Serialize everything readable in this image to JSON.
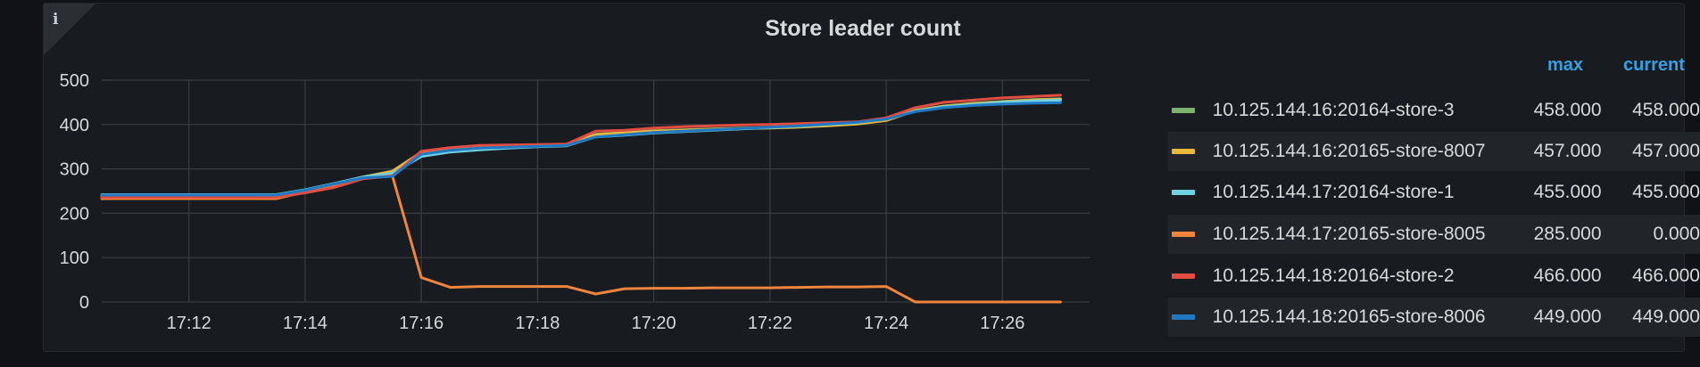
{
  "panel": {
    "title": "Store leader count",
    "info_icon": "info-icon"
  },
  "legend": {
    "headers": {
      "max": "max",
      "current": "current"
    },
    "items": [
      {
        "name": "10.125.144.16:20164-store-3",
        "max": "458.000",
        "current": "458.000",
        "color": "#7eb26d"
      },
      {
        "name": "10.125.144.16:20165-store-8007",
        "max": "457.000",
        "current": "457.000",
        "color": "#eab839"
      },
      {
        "name": "10.125.144.17:20164-store-1",
        "max": "455.000",
        "current": "455.000",
        "color": "#6ed0e0"
      },
      {
        "name": "10.125.144.17:20165-store-8005",
        "max": "285.000",
        "current": "0.000",
        "color": "#ef843c"
      },
      {
        "name": "10.125.144.18:20164-store-2",
        "max": "466.000",
        "current": "466.000",
        "color": "#e24d42"
      },
      {
        "name": "10.125.144.18:20165-store-8006",
        "max": "449.000",
        "current": "449.000",
        "color": "#1f78c1"
      }
    ]
  },
  "chart_data": {
    "type": "line",
    "title": "Store leader count",
    "xlabel": "",
    "ylabel": "",
    "x_ticks": [
      "17:12",
      "17:14",
      "17:16",
      "17:18",
      "17:20",
      "17:22",
      "17:24",
      "17:26"
    ],
    "y_ticks": [
      0,
      100,
      200,
      300,
      400,
      500
    ],
    "ylim": [
      0,
      500
    ],
    "xlim": [
      "17:10.5",
      "17:27.5"
    ],
    "grid": true,
    "legend_position": "right",
    "x": [
      "17:10.5",
      "17:11.0",
      "17:11.5",
      "17:12.0",
      "17:12.5",
      "17:13.0",
      "17:13.5",
      "17:14.0",
      "17:14.5",
      "17:15.0",
      "17:15.5",
      "17:16.0",
      "17:16.5",
      "17:17.0",
      "17:17.5",
      "17:18.0",
      "17:18.5",
      "17:19.0",
      "17:19.5",
      "17:20.0",
      "17:20.5",
      "17:21.0",
      "17:21.5",
      "17:22.0",
      "17:22.5",
      "17:23.0",
      "17:23.5",
      "17:24.0",
      "17:24.5",
      "17:25.0",
      "17:25.5",
      "17:26.0",
      "17:26.5",
      "17:27.0"
    ],
    "series": [
      {
        "name": "10.125.144.16:20164-store-3",
        "color": "#7eb26d",
        "values": [
          238,
          238,
          238,
          238,
          238,
          238,
          238,
          250,
          265,
          282,
          295,
          338,
          345,
          350,
          352,
          353,
          355,
          378,
          382,
          386,
          388,
          390,
          392,
          393,
          395,
          398,
          402,
          410,
          432,
          442,
          448,
          452,
          456,
          458
        ]
      },
      {
        "name": "10.125.144.16:20165-store-8007",
        "color": "#eab839",
        "values": [
          239,
          239,
          239,
          239,
          239,
          239,
          239,
          250,
          265,
          282,
          294,
          337,
          345,
          349,
          351,
          352,
          354,
          377,
          381,
          385,
          387,
          389,
          391,
          392,
          394,
          397,
          401,
          409,
          431,
          441,
          447,
          451,
          455,
          457
        ]
      },
      {
        "name": "10.125.144.17:20164-store-1",
        "color": "#6ed0e0",
        "values": [
          242,
          242,
          242,
          242,
          242,
          242,
          242,
          253,
          267,
          282,
          290,
          328,
          338,
          343,
          347,
          350,
          352,
          372,
          376,
          381,
          384,
          387,
          390,
          393,
          396,
          400,
          404,
          414,
          430,
          440,
          445,
          450,
          453,
          455
        ]
      },
      {
        "name": "10.125.144.17:20165-store-8005",
        "color": "#ef843c",
        "values": [
          233,
          233,
          233,
          233,
          233,
          233,
          233,
          248,
          262,
          278,
          285,
          55,
          33,
          35,
          35,
          35,
          35,
          18,
          30,
          31,
          31,
          32,
          32,
          32,
          33,
          34,
          34,
          35,
          0,
          0,
          0,
          0,
          0,
          0
        ]
      },
      {
        "name": "10.125.144.18:20164-store-2",
        "color": "#e24d42",
        "values": [
          236,
          236,
          236,
          236,
          236,
          236,
          236,
          246,
          258,
          278,
          284,
          340,
          348,
          353,
          354,
          355,
          356,
          385,
          387,
          392,
          395,
          397,
          399,
          400,
          402,
          404,
          406,
          415,
          438,
          450,
          455,
          460,
          463,
          466
        ]
      },
      {
        "name": "10.125.144.18:20165-store-8006",
        "color": "#1f78c1",
        "values": [
          241,
          241,
          241,
          241,
          241,
          241,
          241,
          252,
          266,
          280,
          283,
          333,
          342,
          347,
          349,
          351,
          353,
          372,
          377,
          382,
          385,
          388,
          391,
          394,
          397,
          401,
          405,
          412,
          429,
          438,
          443,
          446,
          448,
          449
        ]
      }
    ]
  }
}
